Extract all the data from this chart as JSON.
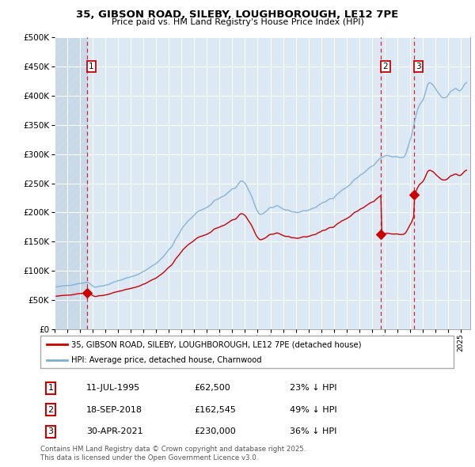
{
  "title_line1": "35, GIBSON ROAD, SILEBY, LOUGHBOROUGH, LE12 7PE",
  "title_line2": "Price paid vs. HM Land Registry's House Price Index (HPI)",
  "ylim": [
    0,
    500000
  ],
  "yticks": [
    0,
    50000,
    100000,
    150000,
    200000,
    250000,
    300000,
    350000,
    400000,
    450000,
    500000
  ],
  "ytick_labels": [
    "£0",
    "£50K",
    "£100K",
    "£150K",
    "£200K",
    "£250K",
    "£300K",
    "£350K",
    "£400K",
    "£450K",
    "£500K"
  ],
  "background_color": "#ffffff",
  "plot_bg_color": "#dce9f5",
  "grid_color": "#ffffff",
  "sale_color": "#cc0000",
  "hpi_color": "#7bafd4",
  "sale_label": "35, GIBSON ROAD, SILEBY, LOUGHBOROUGH, LE12 7PE (detached house)",
  "hpi_label": "HPI: Average price, detached house, Charnwood",
  "footer_line1": "Contains HM Land Registry data © Crown copyright and database right 2025.",
  "footer_line2": "This data is licensed under the Open Government Licence v3.0.",
  "sale_data": [
    [
      1995,
      7,
      11,
      62500
    ],
    [
      2018,
      9,
      18,
      162545
    ],
    [
      2021,
      4,
      30,
      230000
    ]
  ],
  "x_min": 1993.0,
  "x_max": 2025.75,
  "hatch_end": 1995.6
}
